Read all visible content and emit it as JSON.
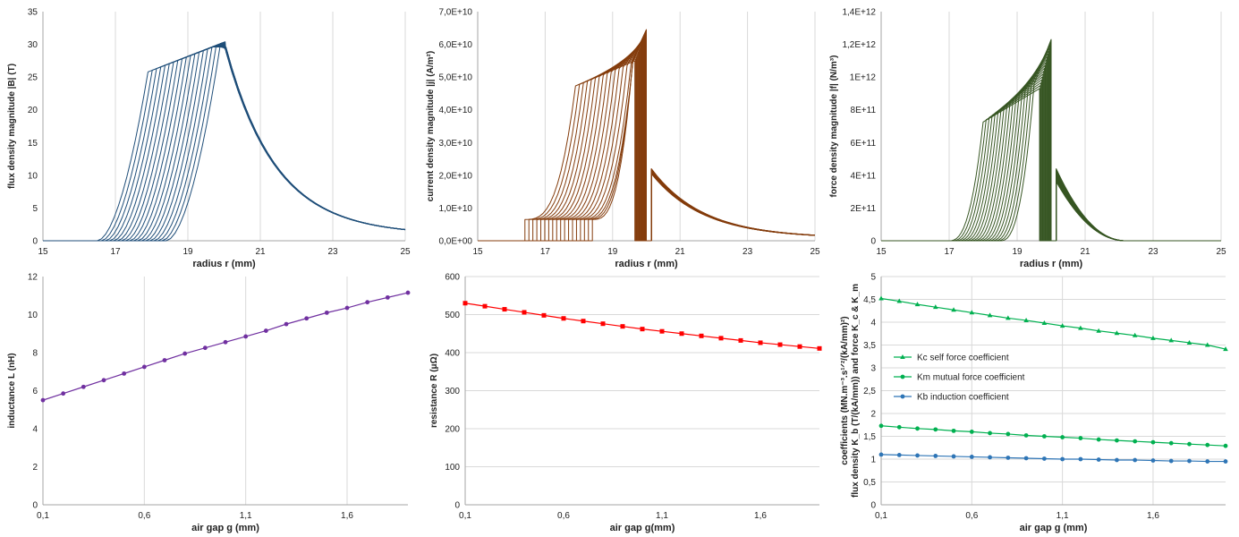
{
  "figure": {
    "panel_count": 6
  },
  "chart_data": [
    {
      "id": "flux",
      "type": "line",
      "xlabel": "radius r (mm)",
      "ylabel": "flux density magnitude |B| (T)",
      "xlim": [
        15,
        25
      ],
      "ylim": [
        0,
        35
      ],
      "x_ticks": [
        "15",
        "17",
        "19",
        "21",
        "23",
        "25"
      ],
      "y_ticks": [
        "0",
        "5",
        "10",
        "15",
        "20",
        "25",
        "30",
        "35"
      ],
      "grid": "vertical",
      "color": "#1f4e79",
      "family": {
        "count": 18,
        "start_x_range": [
          16.5,
          18.4
        ],
        "plateau_x_range": [
          17.9,
          19.9
        ],
        "plateau_y_range": [
          25.8,
          30.1
        ],
        "peak_x": 20.05,
        "peak_y_range": [
          29.6,
          30.4
        ],
        "tail_end_y": 0.9
      }
    },
    {
      "id": "current",
      "type": "line",
      "xlabel": "radius r (mm)",
      "ylabel": "current density magnitude |j| (A/m²)",
      "xlim": [
        15,
        25
      ],
      "ylim": [
        0,
        70000000000
      ],
      "x_ticks": [
        "15",
        "17",
        "19",
        "21",
        "23",
        "25"
      ],
      "y_ticks": [
        "0,0E+00",
        "1,0E+10",
        "2,0E+10",
        "3,0E+10",
        "4,0E+10",
        "5,0E+10",
        "6,0E+10",
        "7,0E+10"
      ],
      "grid": "vertical",
      "color": "#843c0c",
      "family": {
        "count": 18,
        "start_x_range": [
          16.4,
          18.4
        ],
        "base_y": 6500000000,
        "spike_y_range": [
          55000000000,
          64500000000
        ],
        "drop_x": 20.0,
        "tail_start_x": 20.15,
        "tail_peak_y": 22000000000,
        "tail_end_y": 800000000
      }
    },
    {
      "id": "force",
      "type": "line",
      "xlabel": "radius r (mm)",
      "ylabel": "force density magnitude |f| (N/m³)",
      "xlim": [
        15,
        25
      ],
      "ylim": [
        0,
        1400000000000
      ],
      "x_ticks": [
        "15",
        "17",
        "19",
        "21",
        "23",
        "25"
      ],
      "y_ticks": [
        "0",
        "2E+11",
        "4E+11",
        "6E+11",
        "8E+11",
        "1E+12",
        "1,2E+12",
        "1,4E+12"
      ],
      "grid": "vertical",
      "color": "#375623",
      "family": {
        "count": 18,
        "start_x_range": [
          17.0,
          18.5
        ],
        "spike_y_range": [
          930000000000,
          1230000000000
        ],
        "drop_x": 20.0,
        "tail_start_x": 20.15,
        "tail_peak_y": 440000000000,
        "tail_end_x": 22.2
      }
    },
    {
      "id": "inductance",
      "type": "line",
      "xlabel": "air gap g (mm)",
      "ylabel": "inductance L (nH)",
      "xlim": [
        0.1,
        1.9
      ],
      "ylim": [
        0,
        12
      ],
      "x_ticks": [
        "0,1",
        "0,6",
        "1,1",
        "1,6"
      ],
      "x_tick_values": [
        0.1,
        0.6,
        1.1,
        1.6
      ],
      "y_ticks": [
        "0",
        "2",
        "4",
        "6",
        "8",
        "10",
        "12"
      ],
      "grid": "vertical",
      "color": "#7030a0",
      "marker": "circle",
      "series": [
        {
          "x": [
            0.1,
            0.2,
            0.3,
            0.4,
            0.5,
            0.6,
            0.7,
            0.8,
            0.9,
            1.0,
            1.1,
            1.2,
            1.3,
            1.4,
            1.5,
            1.6,
            1.7,
            1.8,
            1.9
          ],
          "y": [
            5.5,
            5.85,
            6.2,
            6.55,
            6.9,
            7.25,
            7.6,
            7.95,
            8.25,
            8.55,
            8.85,
            9.15,
            9.5,
            9.8,
            10.1,
            10.35,
            10.65,
            10.9,
            11.15
          ]
        }
      ]
    },
    {
      "id": "resistance",
      "type": "line",
      "xlabel": "air gap g(mm)",
      "ylabel": "resistance R (μΩ)",
      "xlim": [
        0.1,
        1.9
      ],
      "ylim": [
        0,
        600
      ],
      "x_ticks": [
        "0,1",
        "0,6",
        "1,1",
        "1,6"
      ],
      "x_tick_values": [
        0.1,
        0.6,
        1.1,
        1.6
      ],
      "y_ticks": [
        "0",
        "100",
        "200",
        "300",
        "400",
        "500",
        "600"
      ],
      "grid": "horizontal",
      "color": "#ff0000",
      "marker": "square",
      "series": [
        {
          "x": [
            0.1,
            0.2,
            0.3,
            0.4,
            0.5,
            0.6,
            0.7,
            0.8,
            0.9,
            1.0,
            1.1,
            1.2,
            1.3,
            1.4,
            1.5,
            1.6,
            1.7,
            1.8,
            1.9
          ],
          "y": [
            530,
            522,
            514,
            506,
            498,
            490,
            483,
            476,
            469,
            462,
            456,
            450,
            444,
            438,
            432,
            426,
            421,
            416,
            411
          ]
        }
      ]
    },
    {
      "id": "coefficients",
      "type": "line",
      "xlabel": "air gap g (mm)",
      "ylabel": "flux density Kb (T/(kA/mm)) and force Kc & Km coefficients (MN.m⁻³.s^1/2/(kA/mm)²)",
      "ylabel_lines": [
        "coefficients (MN.m⁻³.s¹ᐟ²/(kA/mm)²)",
        "flux density K_b (T/(kA/mm)) and force K_c & K_m"
      ],
      "xlim": [
        0.1,
        2.0
      ],
      "ylim": [
        0,
        5
      ],
      "x_ticks": [
        "0,1",
        "0,6",
        "1,1",
        "1,6"
      ],
      "x_tick_values": [
        0.1,
        0.6,
        1.1,
        1.6
      ],
      "y_ticks": [
        "0",
        "0,5",
        "1",
        "1,5",
        "2",
        "2,5",
        "3",
        "3,5",
        "4",
        "4,5",
        "5"
      ],
      "grid": "both",
      "legend": "left",
      "series": [
        {
          "name": "Kc self force coefficient",
          "color": "#00b050",
          "marker": "triangle",
          "x": [
            0.1,
            0.2,
            0.3,
            0.4,
            0.5,
            0.6,
            0.7,
            0.8,
            0.9,
            1.0,
            1.1,
            1.2,
            1.3,
            1.4,
            1.5,
            1.6,
            1.7,
            1.8,
            1.9,
            2.0
          ],
          "y": [
            4.52,
            4.46,
            4.39,
            4.33,
            4.27,
            4.21,
            4.15,
            4.09,
            4.04,
            3.98,
            3.92,
            3.87,
            3.81,
            3.76,
            3.71,
            3.65,
            3.6,
            3.55,
            3.5,
            3.41
          ]
        },
        {
          "name": "Km mutual force coefficient",
          "color": "#00b050",
          "marker": "circle",
          "x": [
            0.1,
            0.2,
            0.3,
            0.4,
            0.5,
            0.6,
            0.7,
            0.8,
            0.9,
            1.0,
            1.1,
            1.2,
            1.3,
            1.4,
            1.5,
            1.6,
            1.7,
            1.8,
            1.9,
            2.0
          ],
          "y": [
            1.73,
            1.7,
            1.67,
            1.65,
            1.62,
            1.6,
            1.57,
            1.55,
            1.52,
            1.5,
            1.48,
            1.46,
            1.43,
            1.41,
            1.39,
            1.37,
            1.35,
            1.33,
            1.31,
            1.29
          ]
        },
        {
          "name": "Kb induction coefficient",
          "color": "#2e75b6",
          "marker": "circle",
          "x": [
            0.1,
            0.2,
            0.3,
            0.4,
            0.5,
            0.6,
            0.7,
            0.8,
            0.9,
            1.0,
            1.1,
            1.2,
            1.3,
            1.4,
            1.5,
            1.6,
            1.7,
            1.8,
            1.9,
            2.0
          ],
          "y": [
            1.1,
            1.09,
            1.08,
            1.07,
            1.06,
            1.05,
            1.04,
            1.03,
            1.02,
            1.01,
            1.0,
            1.0,
            0.99,
            0.98,
            0.98,
            0.97,
            0.96,
            0.96,
            0.95,
            0.95
          ]
        }
      ]
    }
  ]
}
